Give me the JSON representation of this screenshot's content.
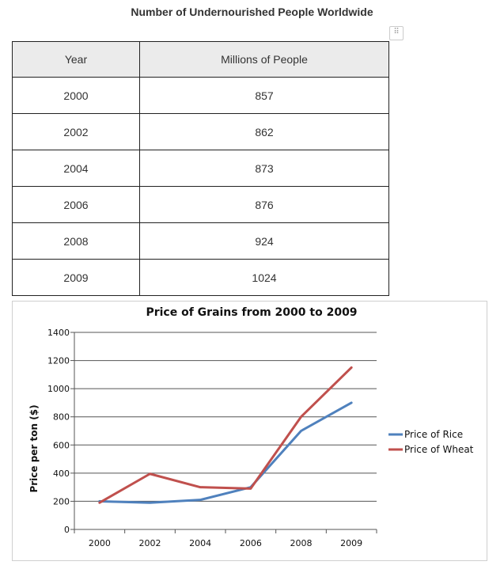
{
  "table": {
    "title": "Number of Undernourished People Worldwide",
    "headers": [
      "Year",
      "Millions of People"
    ],
    "rows": [
      [
        "2000",
        "857"
      ],
      [
        "2002",
        "862"
      ],
      [
        "2004",
        "873"
      ],
      [
        "2006",
        "876"
      ],
      [
        "2008",
        "924"
      ],
      [
        "2009",
        "1024"
      ]
    ]
  },
  "chart_data": [
    {
      "type": "table",
      "title": "Number of Undernourished People Worldwide",
      "columns": [
        "Year",
        "Millions of People"
      ],
      "rows": [
        [
          2000,
          857
        ],
        [
          2002,
          862
        ],
        [
          2004,
          873
        ],
        [
          2006,
          876
        ],
        [
          2008,
          924
        ],
        [
          2009,
          1024
        ]
      ]
    },
    {
      "type": "line",
      "title": "Price of Grains from 2000 to 2009",
      "xlabel": "",
      "ylabel": "Price per ton ($)",
      "categories": [
        "2000",
        "2002",
        "2004",
        "2006",
        "2008",
        "2009"
      ],
      "ylim": [
        0,
        1400
      ],
      "yticks": [
        0,
        200,
        400,
        600,
        800,
        1000,
        1200,
        1400
      ],
      "grid": true,
      "legend_position": "right",
      "series": [
        {
          "name": "Price of Rice",
          "color": "#4f81bd",
          "values": [
            200,
            190,
            210,
            300,
            700,
            900
          ]
        },
        {
          "name": "Price of Wheat",
          "color": "#c0504d",
          "values": [
            190,
            395,
            300,
            290,
            800,
            1150
          ]
        }
      ]
    }
  ]
}
